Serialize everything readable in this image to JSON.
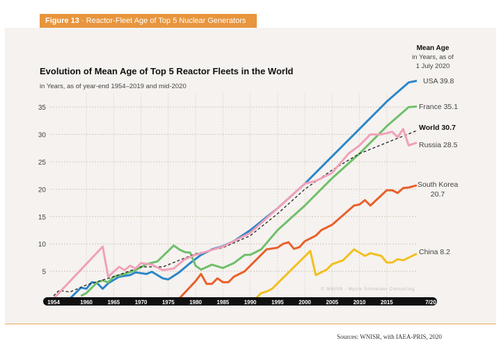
{
  "figure_tag": {
    "number": "Figure 13",
    "title": "Reactor-Fleet Age of Top 5 Nuclear Generators"
  },
  "source": "Sources: WNISR, with IAEA-PRIS, 2020",
  "chart_data": {
    "type": "line",
    "title": "Evolution of Mean Age of Top 5 Reactor Fleets in the World",
    "subtitle": "in Years, as of year-end 1954–2019 and mid-2020",
    "legend_header": [
      "Mean Age",
      "in Years, as of",
      "1 July 2020"
    ],
    "watermark": "© WNISR - Mycle Schneider Consulting",
    "xlim": [
      1954,
      2020.5
    ],
    "ylim": [
      0,
      40
    ],
    "grid": true,
    "x_ticks": [
      {
        "v": 1954,
        "label": "1954"
      },
      {
        "v": 1960,
        "label": "1960"
      },
      {
        "v": 1965,
        "label": "1965"
      },
      {
        "v": 1970,
        "label": "1970"
      },
      {
        "v": 1975,
        "label": "1975"
      },
      {
        "v": 1980,
        "label": "1980"
      },
      {
        "v": 1985,
        "label": "1985"
      },
      {
        "v": 1990,
        "label": "1990"
      },
      {
        "v": 1995,
        "label": "1995"
      },
      {
        "v": 2000,
        "label": "2000"
      },
      {
        "v": 2005,
        "label": "2005"
      },
      {
        "v": 2010,
        "label": "2010"
      },
      {
        "v": 2015,
        "label": "2015"
      },
      {
        "v": 2020.5,
        "label": "7/20"
      }
    ],
    "y_ticks": [
      {
        "v": 5,
        "label": "5"
      },
      {
        "v": 10,
        "label": "10"
      },
      {
        "v": 15,
        "label": "15"
      },
      {
        "v": 20,
        "label": "20"
      },
      {
        "v": 25,
        "label": "25"
      },
      {
        "v": 30,
        "label": "30"
      },
      {
        "v": 35,
        "label": "35"
      }
    ],
    "series": [
      {
        "name": "USA",
        "end_label": "USA 39.8",
        "color": "#2a86c8",
        "dashed": false,
        "points": [
          [
            1957,
            0
          ],
          [
            1959,
            2
          ],
          [
            1960,
            1.8
          ],
          [
            1961,
            3
          ],
          [
            1962,
            2.8
          ],
          [
            1963,
            1.8
          ],
          [
            1964,
            2.8
          ],
          [
            1966,
            4
          ],
          [
            1968,
            4.3
          ],
          [
            1969,
            4.8
          ],
          [
            1971,
            4.5
          ],
          [
            1972,
            4.9
          ],
          [
            1974,
            3.7
          ],
          [
            1975,
            3.5
          ],
          [
            1977,
            4.8
          ],
          [
            1979,
            6.5
          ],
          [
            1981,
            8
          ],
          [
            1983,
            9
          ],
          [
            1985,
            9.6
          ],
          [
            1987,
            10.5
          ],
          [
            1990,
            12.5
          ],
          [
            1995,
            16.5
          ],
          [
            2000,
            21
          ],
          [
            2005,
            26
          ],
          [
            2010,
            31
          ],
          [
            2015,
            36
          ],
          [
            2019,
            39.5
          ],
          [
            2020.5,
            39.8
          ]
        ]
      },
      {
        "name": "France",
        "end_label": "France 35.1",
        "color": "#6fbf6a",
        "dashed": false,
        "points": [
          [
            1959,
            0.5
          ],
          [
            1960,
            1
          ],
          [
            1962,
            3
          ],
          [
            1963,
            3.3
          ],
          [
            1964,
            3
          ],
          [
            1965,
            4
          ],
          [
            1967,
            4.5
          ],
          [
            1969,
            5.2
          ],
          [
            1971,
            6.3
          ],
          [
            1973,
            6.8
          ],
          [
            1976,
            9.7
          ],
          [
            1977,
            9
          ],
          [
            1978,
            8.5
          ],
          [
            1979,
            8.4
          ],
          [
            1980,
            6
          ],
          [
            1981,
            5.3
          ],
          [
            1983,
            6.2
          ],
          [
            1985,
            5.6
          ],
          [
            1987,
            6.5
          ],
          [
            1989,
            8
          ],
          [
            1990,
            8
          ],
          [
            1992,
            9
          ],
          [
            1995,
            12.5
          ],
          [
            2000,
            17
          ],
          [
            2005,
            22
          ],
          [
            2010,
            26.5
          ],
          [
            2015,
            31.5
          ],
          [
            2019,
            35
          ],
          [
            2020.5,
            35.1
          ]
        ]
      },
      {
        "name": "World",
        "end_label": "World 30.7",
        "color": "#222222",
        "dashed": true,
        "points": [
          [
            1954,
            0.5
          ],
          [
            1955,
            1.5
          ],
          [
            1957,
            1.2
          ],
          [
            1960,
            2.5
          ],
          [
            1965,
            4
          ],
          [
            1970,
            5.8
          ],
          [
            1974,
            5.8
          ],
          [
            1977,
            7
          ],
          [
            1980,
            8.2
          ],
          [
            1985,
            9.3
          ],
          [
            1990,
            11.5
          ],
          [
            1995,
            15.5
          ],
          [
            2000,
            20
          ],
          [
            2005,
            23.5
          ],
          [
            2010,
            26.5
          ],
          [
            2015,
            28.5
          ],
          [
            2020.5,
            30.7
          ]
        ]
      },
      {
        "name": "Russia",
        "end_label": "Russia 28.5",
        "color": "#f0a0b8",
        "dashed": false,
        "points": [
          [
            1954,
            0
          ],
          [
            1963,
            9.5
          ],
          [
            1964,
            4
          ],
          [
            1966,
            5.8
          ],
          [
            1967,
            5.2
          ],
          [
            1968,
            6
          ],
          [
            1969,
            5.5
          ],
          [
            1970,
            6.5
          ],
          [
            1972,
            6.2
          ],
          [
            1974,
            5.2
          ],
          [
            1976,
            5.5
          ],
          [
            1978,
            7.2
          ],
          [
            1980,
            8
          ],
          [
            1985,
            9.5
          ],
          [
            1987,
            10.5
          ],
          [
            1990,
            12
          ],
          [
            1995,
            16.5
          ],
          [
            2000,
            21
          ],
          [
            2002,
            21.5
          ],
          [
            2005,
            23
          ],
          [
            2008,
            26.5
          ],
          [
            2010,
            28
          ],
          [
            2012,
            30
          ],
          [
            2014,
            30
          ],
          [
            2016,
            30.5
          ],
          [
            2017,
            29.5
          ],
          [
            2018,
            31
          ],
          [
            2019,
            28
          ],
          [
            2020.5,
            28.5
          ]
        ]
      },
      {
        "name": "South Korea",
        "end_label": "South Korea",
        "end_label_2": "20.7",
        "color": "#e8602a",
        "dashed": false,
        "points": [
          [
            1977,
            0
          ],
          [
            1980,
            3.2
          ],
          [
            1981,
            4.5
          ],
          [
            1982,
            2.7
          ],
          [
            1983,
            2.7
          ],
          [
            1984,
            3.7
          ],
          [
            1985,
            3
          ],
          [
            1986,
            3
          ],
          [
            1987,
            4
          ],
          [
            1989,
            5
          ],
          [
            1990,
            6
          ],
          [
            1993,
            9
          ],
          [
            1995,
            9.3
          ],
          [
            1996,
            10
          ],
          [
            1997,
            10.3
          ],
          [
            1998,
            9.1
          ],
          [
            1999,
            9.4
          ],
          [
            2000,
            10.5
          ],
          [
            2002,
            11.5
          ],
          [
            2003,
            12.5
          ],
          [
            2005,
            13.5
          ],
          [
            2009,
            17
          ],
          [
            2010,
            17.2
          ],
          [
            2011,
            18
          ],
          [
            2012,
            17
          ],
          [
            2015,
            19.8
          ],
          [
            2016,
            19.8
          ],
          [
            2017,
            19.3
          ],
          [
            2018,
            20.2
          ],
          [
            2019,
            20.3
          ],
          [
            2020.5,
            20.7
          ]
        ]
      },
      {
        "name": "China",
        "end_label": "China 8.2",
        "color": "#f2bf1e",
        "dashed": false,
        "points": [
          [
            1991,
            0
          ],
          [
            1992,
            1
          ],
          [
            1993,
            1.3
          ],
          [
            1994,
            1.8
          ],
          [
            2001,
            8.7
          ],
          [
            2002,
            4.3
          ],
          [
            2003,
            4.8
          ],
          [
            2004,
            5.3
          ],
          [
            2005,
            6.3
          ],
          [
            2007,
            7
          ],
          [
            2009,
            9
          ],
          [
            2011,
            7.8
          ],
          [
            2012,
            8.3
          ],
          [
            2014,
            7.8
          ],
          [
            2015,
            6.6
          ],
          [
            2016,
            6.6
          ],
          [
            2017,
            7.2
          ],
          [
            2018,
            7
          ],
          [
            2020.5,
            8.2
          ]
        ]
      }
    ]
  }
}
